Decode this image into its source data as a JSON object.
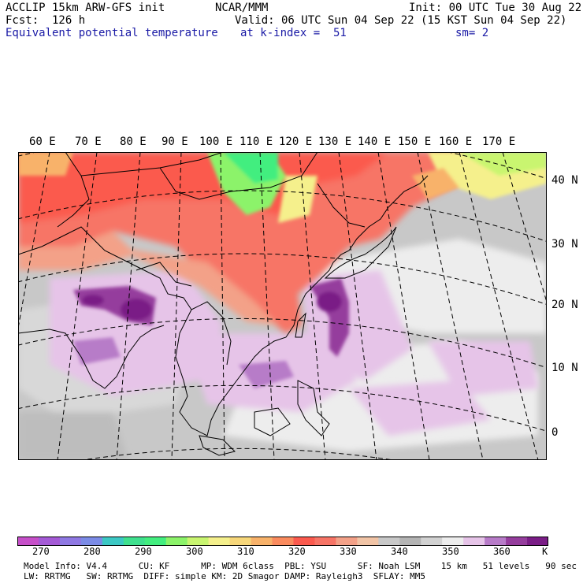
{
  "header": {
    "model": "ACCLIP 15km ARW-GFS init",
    "org": "NCAR/MMM",
    "init": "Init: 00 UTC Tue 30 Aug 22",
    "fcst": "Fcst:  126 h",
    "valid": "Valid: 06 UTC Sun 04 Sep 22 (15 KST Sun 04 Sep 22)",
    "field": "Equivalent potential temperature",
    "level": "at k-index =  51",
    "smooth": "sm= 2"
  },
  "map": {
    "lon_labels": [
      "60 E",
      "70 E",
      "80 E",
      "90 E",
      "100 E",
      "110 E",
      "120 E",
      "130 E",
      "140 E",
      "150 E",
      "160 E",
      "170 E"
    ],
    "lat_labels": [
      "40 N",
      "30 N",
      "20 N",
      "10 N",
      "0"
    ],
    "colors": {
      "land_border": "#000000",
      "grid": "#000000"
    }
  },
  "colorbar": {
    "colors": [
      "#c64fc9",
      "#a45ad6",
      "#8f78e3",
      "#7b8be6",
      "#3cc8c4",
      "#3fe08e",
      "#43ee7f",
      "#8cf36a",
      "#c9f570",
      "#f5f08c",
      "#f7d77a",
      "#f8b26a",
      "#fa8b5e",
      "#fb5a4e",
      "#f77466",
      "#f3a188",
      "#f1c4a6",
      "#c8c8c8",
      "#b4b4b4",
      "#d2d2d2",
      "#ededed",
      "#e6c4e8",
      "#b77bc8",
      "#953d9d",
      "#7a1d86"
    ],
    "labels": [
      "270",
      "280",
      "290",
      "300",
      "310",
      "320",
      "330",
      "340",
      "350",
      "360"
    ],
    "unit": "K"
  },
  "footer": {
    "line1": "Model Info: V4.4      CU: KF      MP: WDM 6class  PBL: YSU      SF: Noah LSM    15 km   51 levels   90 sec",
    "line2": "LW: RRTMG   SW: RRTMG  DIFF: simple KM: 2D Smagor DAMP: Rayleigh3  SFLAY: MM5"
  }
}
